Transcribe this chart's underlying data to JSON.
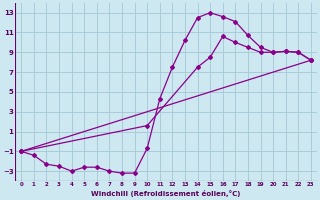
{
  "xlabel": "Windchill (Refroidissement éolien,°C)",
  "bg_color": "#cde8f0",
  "grid_color": "#a8ccd8",
  "line_color": "#8b008b",
  "plot_bg": "#cde8f0",
  "xlim": [
    -0.5,
    23.5
  ],
  "ylim": [
    -4,
    14
  ],
  "yticks": [
    -3,
    -1,
    1,
    3,
    5,
    7,
    9,
    11,
    13
  ],
  "xticks": [
    0,
    1,
    2,
    3,
    4,
    5,
    6,
    7,
    8,
    9,
    10,
    11,
    12,
    13,
    14,
    15,
    16,
    17,
    18,
    19,
    20,
    21,
    22,
    23
  ],
  "line1_x": [
    0,
    1,
    2,
    3,
    4,
    5,
    6,
    7,
    8,
    9,
    10,
    11,
    12,
    13,
    14,
    15,
    16,
    17,
    18,
    19,
    20,
    21,
    22,
    23
  ],
  "line1_y": [
    -1,
    -1.4,
    -2.3,
    -2.5,
    -3,
    -2.6,
    -2.6,
    -3,
    -3.2,
    -3.2,
    -0.7,
    4.3,
    7.5,
    10.2,
    12.5,
    13,
    12.6,
    12.1,
    10.7,
    9.5,
    9.0,
    9.1,
    9.0,
    8.2
  ],
  "line2_x": [
    0,
    10,
    14,
    15,
    16,
    17,
    18,
    19,
    20,
    21,
    22,
    23
  ],
  "line2_y": [
    -1,
    1.6,
    7.5,
    8.5,
    10.6,
    10.0,
    9.5,
    9.0,
    9.0,
    9.1,
    9.0,
    8.2
  ],
  "line3_x": [
    0,
    23
  ],
  "line3_y": [
    -1,
    8.2
  ]
}
